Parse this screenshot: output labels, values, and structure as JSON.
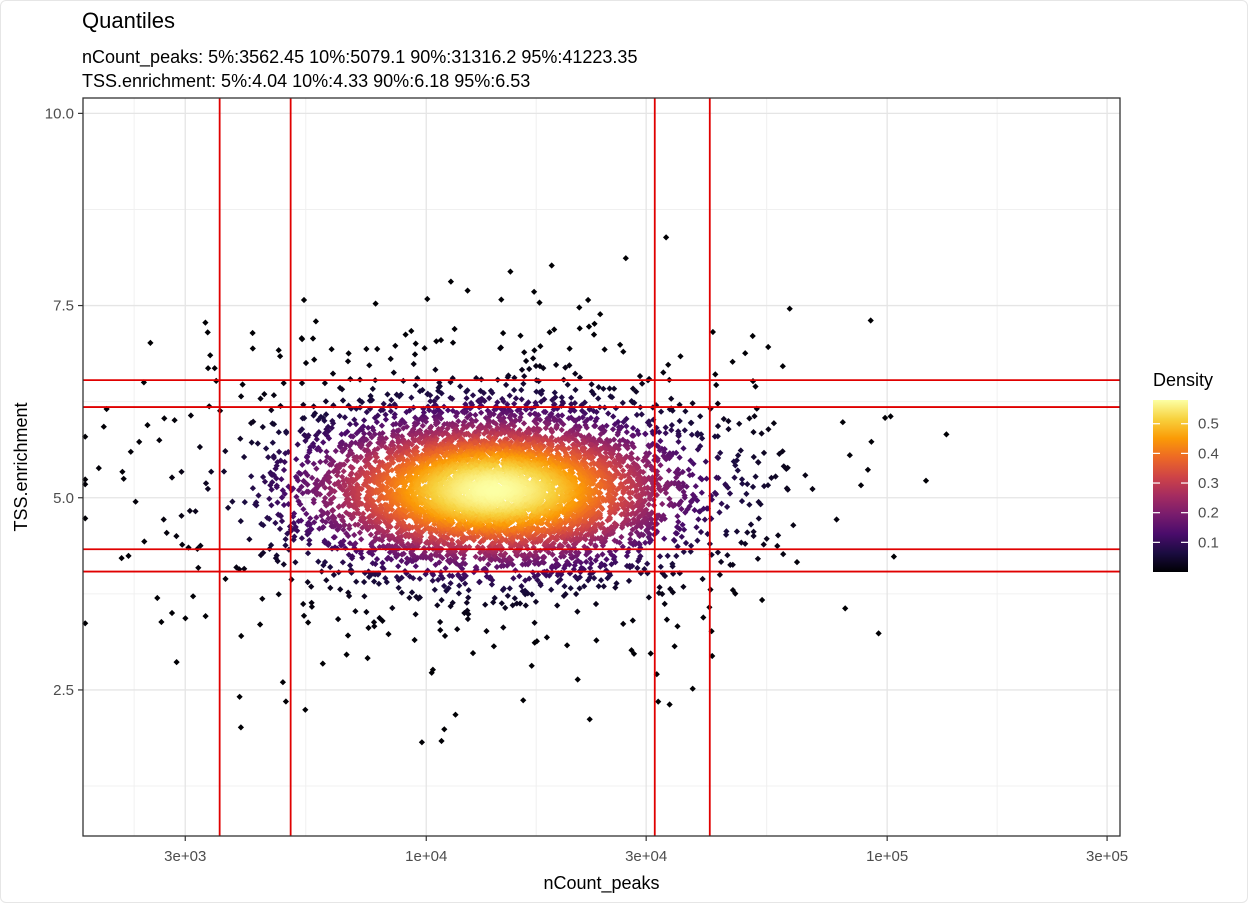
{
  "chart_data": {
    "type": "scatter",
    "title": "Quantiles",
    "subtitle_lines": [
      "nCount_peaks: 5%:3562.45 10%:5079.1 90%:31316.2 95%:41223.35",
      "TSS.enrichment: 5%:4.04 10%:4.33 90%:6.18 95%:6.53"
    ],
    "xlabel": "nCount_peaks",
    "ylabel": "TSS.enrichment",
    "x_scale": "log10",
    "xlim": [
      1800,
      320000
    ],
    "ylim": [
      0.6,
      10.2
    ],
    "x_ticks": [
      {
        "value": 3000,
        "label": "3e+03"
      },
      {
        "value": 10000,
        "label": "1e+04"
      },
      {
        "value": 30000,
        "label": "3e+04"
      },
      {
        "value": 100000,
        "label": "1e+05"
      },
      {
        "value": 300000,
        "label": "3e+05"
      }
    ],
    "y_ticks": [
      {
        "value": 2.5,
        "label": "2.5"
      },
      {
        "value": 5.0,
        "label": "5.0"
      },
      {
        "value": 7.5,
        "label": "7.5"
      },
      {
        "value": 10.0,
        "label": "10.0"
      }
    ],
    "grid": true,
    "vlines": [
      3562.45,
      5079.1,
      31316.2,
      41223.35
    ],
    "hlines": [
      4.04,
      4.33,
      6.18,
      6.53
    ],
    "line_color": "#e00000",
    "density_center": {
      "x": 14000,
      "y": 5.1
    },
    "n_points": 6500,
    "legend": {
      "title": "Density",
      "placement": "right",
      "breaks": [
        0.1,
        0.2,
        0.3,
        0.4,
        0.5
      ],
      "labels": [
        "0.1",
        "0.2",
        "0.3",
        "0.4",
        "0.5"
      ],
      "range": [
        0.0,
        0.58
      ],
      "colors": [
        "#000004",
        "#1b0c41",
        "#4a0c6b",
        "#781c6d",
        "#a52c60",
        "#cf4446",
        "#ed6925",
        "#fb9b06",
        "#f7d13d",
        "#fcffa4"
      ]
    }
  }
}
